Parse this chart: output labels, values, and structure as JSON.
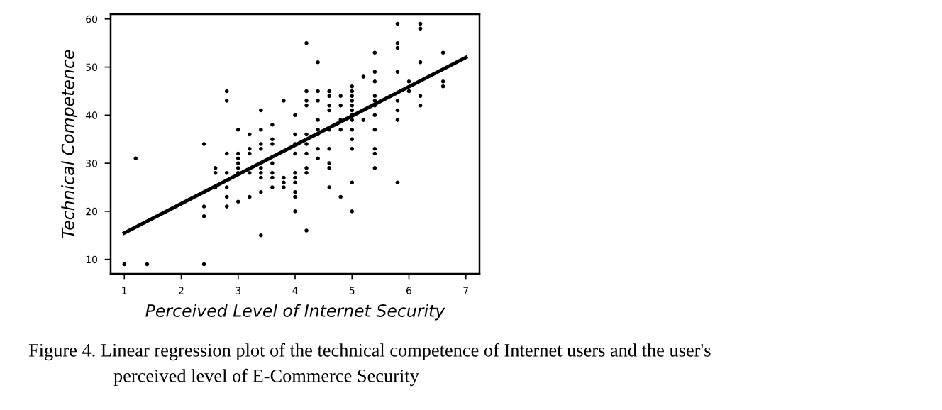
{
  "chart_data": {
    "type": "scatter",
    "xlabel": "Perceived Level of Internet Security",
    "ylabel": "Technical Competence",
    "annotations": [
      "Figure 4. Linear regression plot of the technical competence of Internet users and the user's",
      "perceived level of E-Commerce Security"
    ],
    "xlim": [
      0.76,
      7.24
    ],
    "ylim": [
      7,
      61
    ],
    "xticks": [
      1,
      2,
      3,
      4,
      5,
      6,
      7
    ],
    "yticks": [
      10,
      20,
      30,
      40,
      50,
      60
    ],
    "grid": false,
    "legend": false,
    "series": [
      {
        "marker": "circle",
        "color": "#000000",
        "x": [
          1,
          1.2,
          1.4,
          2.4,
          2.4,
          2.4,
          2.4,
          2.6,
          2.6,
          2.6,
          2.8,
          2.8,
          2.8,
          2.8,
          2.8,
          2.8,
          2.8,
          3.0,
          3.0,
          3.0,
          3.0,
          3.0,
          3.0,
          3.0,
          3.2,
          3.2,
          3.2,
          3.2,
          3.2,
          3.4,
          3.4,
          3.4,
          3.4,
          3.4,
          3.4,
          3.4,
          3.4,
          3.4,
          3.4,
          3.6,
          3.6,
          3.6,
          3.6,
          3.6,
          3.6,
          3.6,
          3.8,
          3.8,
          3.8,
          3.8,
          4.0,
          4.0,
          4.0,
          4.0,
          4.0,
          4.0,
          4.0,
          4.0,
          4.0,
          4.0,
          4.2,
          4.2,
          4.2,
          4.2,
          4.2,
          4.2,
          4.2,
          4.2,
          4.2,
          4.2,
          4.4,
          4.4,
          4.4,
          4.4,
          4.4,
          4.4,
          4.4,
          4.4,
          4.6,
          4.6,
          4.6,
          4.6,
          4.6,
          4.6,
          4.6,
          4.6,
          4.6,
          4.8,
          4.8,
          4.8,
          4.8,
          4.8,
          5.0,
          5.0,
          5.0,
          5.0,
          5.0,
          5.0,
          5.0,
          5.0,
          5.0,
          5.0,
          5.0,
          5.0,
          5.0,
          5.2,
          5.2,
          5.4,
          5.4,
          5.4,
          5.4,
          5.4,
          5.4,
          5.4,
          5.4,
          5.4,
          5.4,
          5.4,
          5.8,
          5.8,
          5.8,
          5.8,
          5.8,
          5.8,
          5.8,
          5.8,
          6.0,
          6.0,
          6.2,
          6.2,
          6.2,
          6.2,
          6.2,
          6.6,
          6.6,
          6.6
        ],
        "values": [
          9,
          31,
          9,
          34,
          21,
          19,
          9,
          29,
          28,
          25,
          45,
          43,
          32,
          28,
          25,
          23,
          21,
          37,
          32,
          31,
          30,
          29,
          28,
          22,
          36,
          33,
          32,
          28,
          23,
          41,
          37,
          34,
          33,
          30,
          29,
          28,
          27,
          24,
          15,
          38,
          35,
          34,
          30,
          28,
          27,
          25,
          43,
          27,
          26,
          25,
          40,
          36,
          34,
          32,
          28,
          27,
          26,
          24,
          23,
          20,
          55,
          45,
          43,
          42,
          36,
          34,
          32,
          29,
          28,
          16,
          51,
          45,
          43,
          39,
          37,
          36,
          33,
          31,
          45,
          44,
          42,
          41,
          37,
          33,
          30,
          29,
          25,
          44,
          42,
          39,
          37,
          23,
          46,
          45,
          44,
          43,
          42,
          41,
          40,
          39,
          37,
          35,
          33,
          26,
          20,
          48,
          39,
          53,
          49,
          47,
          44,
          43,
          42,
          40,
          37,
          33,
          32,
          29,
          59,
          55,
          54,
          49,
          43,
          41,
          39,
          26,
          47,
          45,
          59,
          58,
          51,
          44,
          42,
          53,
          47,
          46
        ]
      },
      {
        "type": "line",
        "marker": "none",
        "color": "#000000",
        "x": [
          1,
          7
        ],
        "values": [
          15.5,
          52
        ]
      }
    ]
  }
}
